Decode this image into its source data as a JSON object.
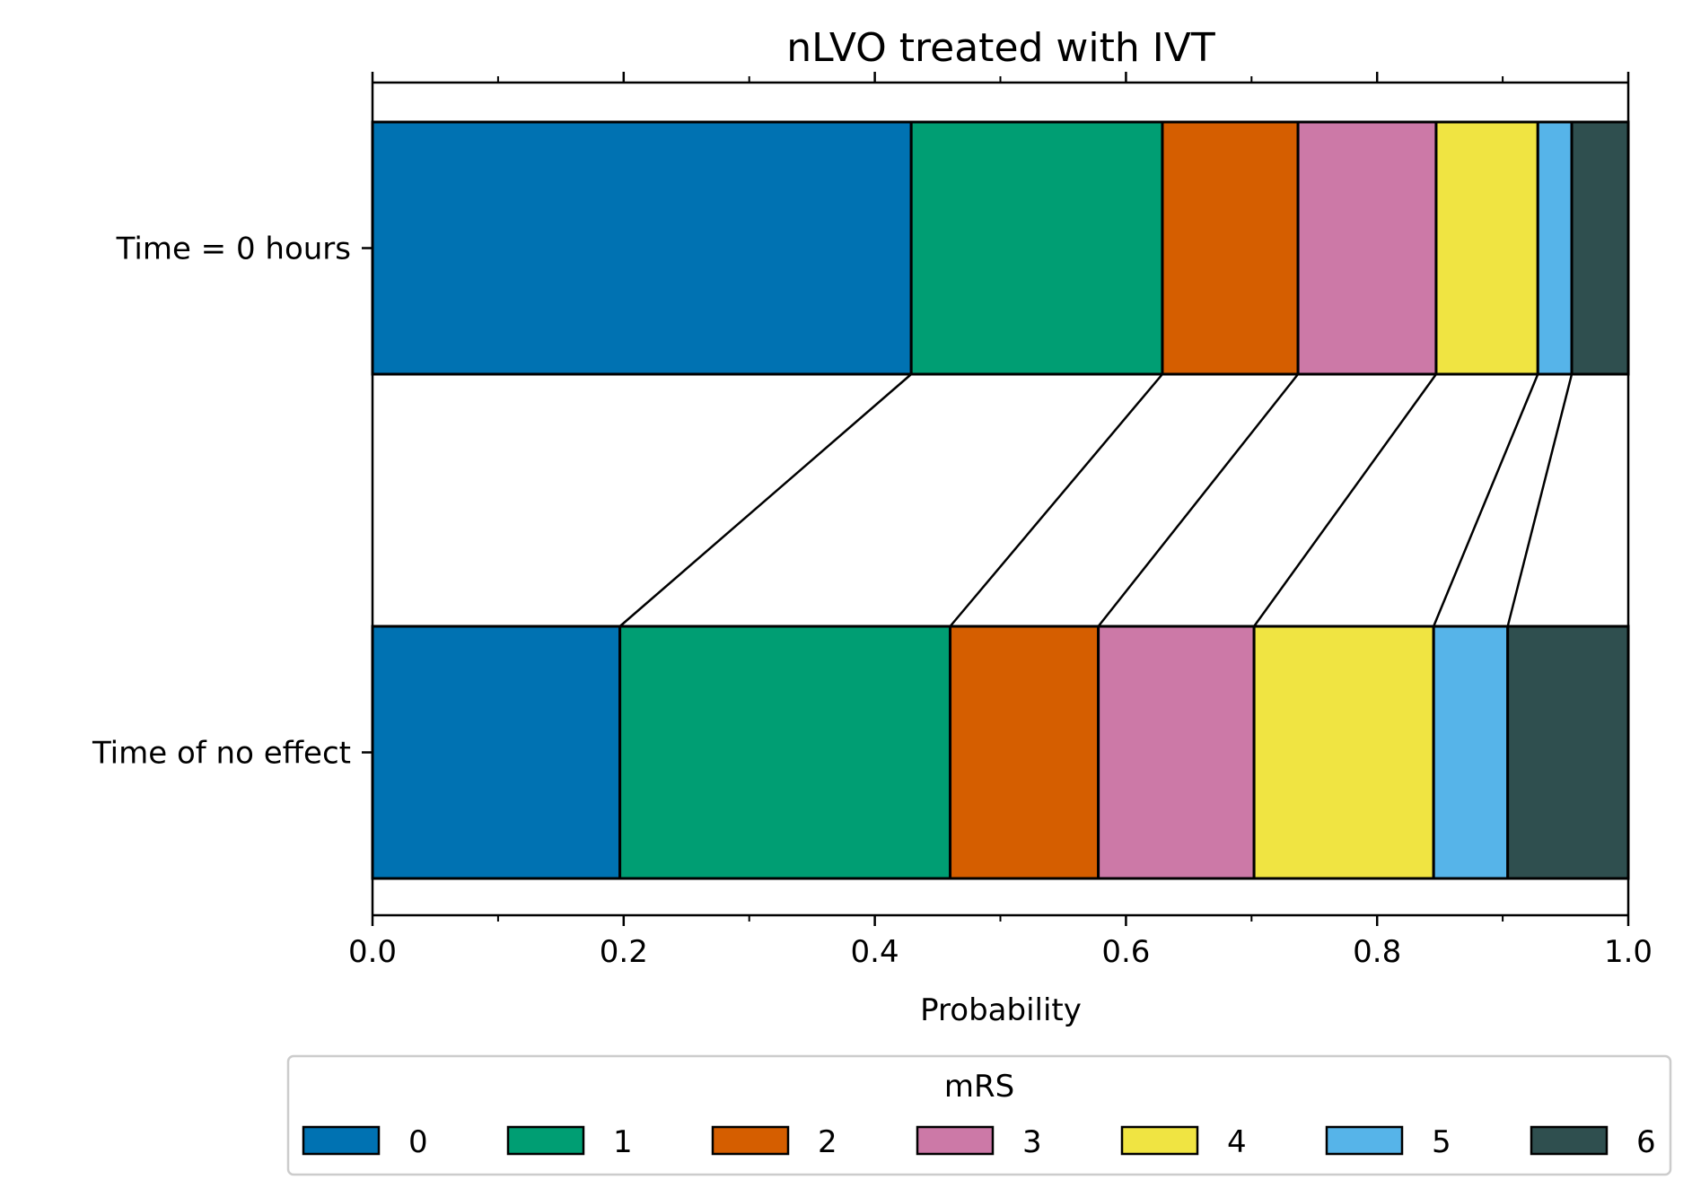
{
  "chart_data": {
    "type": "bar",
    "orientation": "horizontal",
    "stacked": true,
    "title": "nLVO treated with IVT",
    "xlabel": "Probability",
    "ylabel": "",
    "xlim": [
      0.0,
      1.0
    ],
    "x_ticks": [
      "0.0",
      "0.2",
      "0.4",
      "0.6",
      "0.8",
      "1.0"
    ],
    "x_minor_ticks": [
      0.1,
      0.3,
      0.5,
      0.7,
      0.9
    ],
    "categories": [
      "Time = 0 hours",
      "Time of no effect"
    ],
    "legend_title": "mRS",
    "legend_position": "bottom-center",
    "grid": false,
    "connector_lines": true,
    "series": [
      {
        "name": "0",
        "color": "#0072B2",
        "values": [
          0.429,
          0.197
        ]
      },
      {
        "name": "1",
        "color": "#009E73",
        "values": [
          0.2,
          0.263
        ]
      },
      {
        "name": "2",
        "color": "#D55E00",
        "values": [
          0.108,
          0.118
        ]
      },
      {
        "name": "3",
        "color": "#CC79A7",
        "values": [
          0.11,
          0.124
        ]
      },
      {
        "name": "4",
        "color": "#F0E442",
        "values": [
          0.081,
          0.143
        ]
      },
      {
        "name": "5",
        "color": "#56B4E9",
        "values": [
          0.027,
          0.059
        ]
      },
      {
        "name": "6",
        "color": "#2F4F4F",
        "values": [
          0.045,
          0.096
        ]
      }
    ]
  }
}
